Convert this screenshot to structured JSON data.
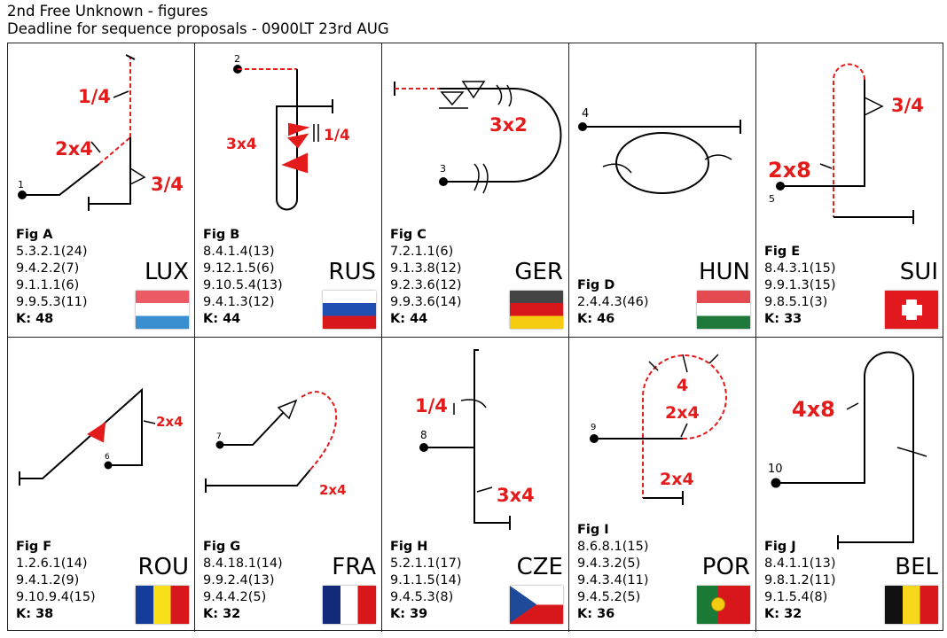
{
  "header": {
    "line1": "2nd Free Unknown - figures",
    "line2": "Deadline for sequence proposals - 0900LT 23rd AUG"
  },
  "figures": [
    {
      "fig": "Fig A",
      "codes": [
        "5.3.2.1(24)",
        "9.4.2.2(7)",
        "9.1.1.1(6)",
        "9.9.5.3(11)"
      ],
      "k": "K: 48",
      "country": "LUX",
      "flag": "lux",
      "start": "1",
      "labels": [
        "1/4",
        "2x4",
        "3/4"
      ]
    },
    {
      "fig": "Fig B",
      "codes": [
        "8.4.1.4(13)",
        "9.12.1.5(6)",
        "9.10.5.4(13)",
        "9.4.1.3(12)"
      ],
      "k": "K: 44",
      "country": "RUS",
      "flag": "rus",
      "start": "2",
      "labels": [
        "1/4",
        "3x4"
      ]
    },
    {
      "fig": "Fig C",
      "codes": [
        "7.2.1.1(6)",
        "9.1.3.8(12)",
        "9.2.3.6(12)",
        "9.9.3.6(14)"
      ],
      "k": "K: 44",
      "country": "GER",
      "flag": "ger",
      "start": "3",
      "labels": [
        "3x2"
      ]
    },
    {
      "fig": "Fig D",
      "codes": [
        "2.4.4.3(46)"
      ],
      "k": "K: 46",
      "country": "HUN",
      "flag": "hun",
      "start": "4",
      "labels": []
    },
    {
      "fig": "Fig E",
      "codes": [
        "8.4.3.1(15)",
        "9.9.1.3(15)",
        "9.8.5.1(3)"
      ],
      "k": "K: 33",
      "country": "SUI",
      "flag": "sui",
      "start": "5",
      "labels": [
        "2x8",
        "3/4"
      ]
    },
    {
      "fig": "Fig F",
      "codes": [
        "1.2.6.1(14)",
        "9.4.1.2(9)",
        "9.10.9.4(15)"
      ],
      "k": "K: 38",
      "country": "ROU",
      "flag": "rou",
      "start": "6",
      "labels": [
        "2x4"
      ]
    },
    {
      "fig": "Fig G",
      "codes": [
        "8.4.18.1(14)",
        "9.9.2.4(13)",
        "9.4.4.2(5)"
      ],
      "k": "K: 32",
      "country": "FRA",
      "flag": "fra",
      "start": "7",
      "labels": [
        "2x4"
      ]
    },
    {
      "fig": "Fig H",
      "codes": [
        "5.2.1.1(17)",
        "9.1.1.5(14)",
        "9.4.5.3(8)"
      ],
      "k": "K: 39",
      "country": "CZE",
      "flag": "cze",
      "start": "8",
      "labels": [
        "1/4",
        "3x4"
      ]
    },
    {
      "fig": "Fig I",
      "codes": [
        "8.6.8.1(15)",
        "9.4.3.2(5)",
        "9.4.3.4(11)",
        "9.4.5.2(5)"
      ],
      "k": "K: 36",
      "country": "POR",
      "flag": "por",
      "start": "9",
      "labels": [
        "4",
        "2x4",
        "2x4"
      ]
    },
    {
      "fig": "Fig J",
      "codes": [
        "8.4.1.1(13)",
        "9.8.1.2(11)",
        "9.1.5.4(8)"
      ],
      "k": "K: 32",
      "country": "BEL",
      "flag": "bel",
      "start": "10",
      "labels": [
        "4x8"
      ]
    }
  ],
  "colors": {
    "roll_labels": "#e31b1b",
    "lines": "#000000"
  }
}
